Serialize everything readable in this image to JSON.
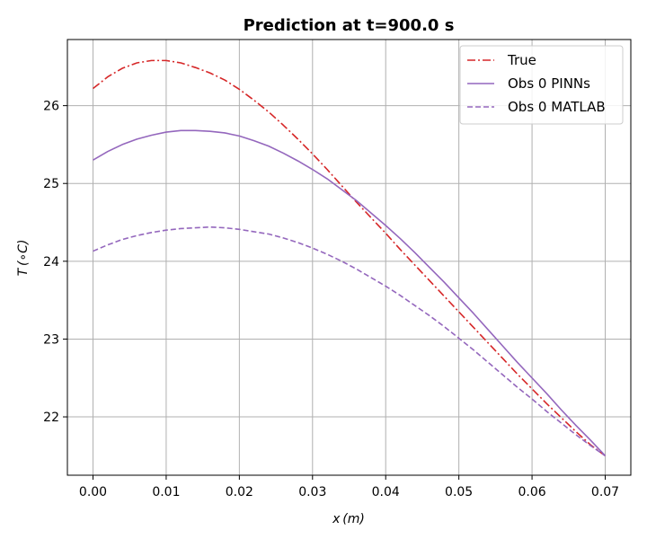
{
  "chart_data": {
    "type": "line",
    "title": "Prediction at t=900.0 s",
    "xlabel": "x (m)",
    "ylabel": "T (∘C)",
    "xlim": [
      -0.0035,
      0.0735
    ],
    "ylim": [
      21.25,
      26.85
    ],
    "xticks": [
      0.0,
      0.01,
      0.02,
      0.03,
      0.04,
      0.05,
      0.06,
      0.07
    ],
    "xtick_labels": [
      "0.00",
      "0.01",
      "0.02",
      "0.03",
      "0.04",
      "0.05",
      "0.06",
      "0.07"
    ],
    "yticks": [
      22,
      23,
      24,
      25,
      26
    ],
    "ytick_labels": [
      "22",
      "23",
      "24",
      "25",
      "26"
    ],
    "grid": true,
    "legend": "top-right",
    "series": [
      {
        "name": "True",
        "color": "#d62728",
        "dash": "dashdot",
        "x": [
          0.0,
          0.002,
          0.004,
          0.006,
          0.008,
          0.01,
          0.012,
          0.014,
          0.016,
          0.018,
          0.02,
          0.022,
          0.024,
          0.026,
          0.028,
          0.03,
          0.032,
          0.034,
          0.036,
          0.038,
          0.04,
          0.042,
          0.044,
          0.046,
          0.048,
          0.05,
          0.052,
          0.054,
          0.056,
          0.058,
          0.06,
          0.062,
          0.064,
          0.066,
          0.068,
          0.07
        ],
        "y": [
          26.22,
          26.37,
          26.48,
          26.55,
          26.58,
          26.58,
          26.55,
          26.49,
          26.42,
          26.33,
          26.21,
          26.07,
          25.92,
          25.75,
          25.57,
          25.38,
          25.18,
          24.97,
          24.76,
          24.56,
          24.36,
          24.15,
          23.95,
          23.75,
          23.55,
          23.35,
          23.15,
          22.95,
          22.75,
          22.55,
          22.36,
          22.17,
          21.99,
          21.81,
          21.64,
          21.5
        ]
      },
      {
        "name": "Obs 0 PINNs",
        "color": "#9467bd",
        "dash": "solid",
        "x": [
          0.0,
          0.002,
          0.004,
          0.006,
          0.008,
          0.01,
          0.012,
          0.014,
          0.016,
          0.018,
          0.02,
          0.022,
          0.024,
          0.026,
          0.028,
          0.03,
          0.032,
          0.034,
          0.036,
          0.038,
          0.04,
          0.042,
          0.044,
          0.046,
          0.048,
          0.05,
          0.052,
          0.054,
          0.056,
          0.058,
          0.06,
          0.062,
          0.064,
          0.066,
          0.068,
          0.07
        ],
        "y": [
          25.3,
          25.41,
          25.5,
          25.57,
          25.62,
          25.66,
          25.68,
          25.68,
          25.67,
          25.65,
          25.61,
          25.55,
          25.48,
          25.39,
          25.29,
          25.18,
          25.06,
          24.92,
          24.78,
          24.62,
          24.46,
          24.29,
          24.11,
          23.92,
          23.73,
          23.53,
          23.33,
          23.12,
          22.91,
          22.7,
          22.5,
          22.3,
          22.09,
          21.89,
          21.7,
          21.5
        ]
      },
      {
        "name": "Obs 0 MATLAB",
        "color": "#9467bd",
        "dash": "dashed",
        "x": [
          0.0,
          0.002,
          0.004,
          0.006,
          0.008,
          0.01,
          0.012,
          0.014,
          0.016,
          0.018,
          0.02,
          0.022,
          0.024,
          0.026,
          0.028,
          0.03,
          0.032,
          0.034,
          0.036,
          0.038,
          0.04,
          0.042,
          0.044,
          0.046,
          0.048,
          0.05,
          0.052,
          0.054,
          0.056,
          0.058,
          0.06,
          0.062,
          0.064,
          0.066,
          0.068,
          0.07
        ],
        "y": [
          24.13,
          24.21,
          24.28,
          24.33,
          24.37,
          24.4,
          24.42,
          24.43,
          24.44,
          24.43,
          24.41,
          24.38,
          24.35,
          24.3,
          24.24,
          24.17,
          24.09,
          24.0,
          23.9,
          23.79,
          23.68,
          23.56,
          23.43,
          23.3,
          23.16,
          23.01,
          22.86,
          22.7,
          22.54,
          22.38,
          22.23,
          22.07,
          21.92,
          21.77,
          21.63,
          21.5
        ]
      }
    ]
  }
}
